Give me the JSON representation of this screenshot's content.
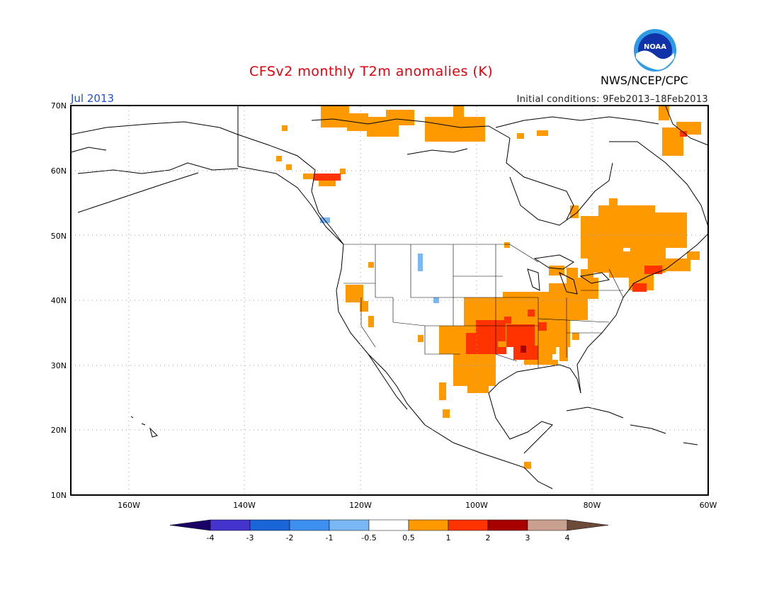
{
  "title": "CFSv2 monthly T2m anomalies (K)",
  "valid_month": "Jul 2013",
  "initial_conditions": "Initial conditions: 9Feb2013–18Feb2013",
  "organization": "NWS/NCEP/CPC",
  "logo": {
    "text": "NOAA",
    "icon": "noaa-logo"
  },
  "map": {
    "lat_ticks": [
      "70N",
      "60N",
      "50N",
      "40N",
      "30N",
      "20N",
      "10N"
    ],
    "lon_ticks": [
      "160W",
      "140W",
      "120W",
      "100W",
      "80W",
      "60W"
    ],
    "lat_range": [
      10,
      70
    ],
    "lon_range": [
      -170,
      -60
    ],
    "gridlines": true
  },
  "colorbar": {
    "labels": [
      "-4",
      "-3",
      "-2",
      "-1",
      "-0.5",
      "0.5",
      "1",
      "2",
      "3",
      "4"
    ],
    "colors": [
      "#1a0066",
      "#4433cc",
      "#1a66d9",
      "#3d8ff0",
      "#7ab8f5",
      "#ffffff",
      "#ff9900",
      "#ff3300",
      "#a80000",
      "#c9a090",
      "#6b4a3a"
    ]
  },
  "colors": {
    "plus_0_5_to_1": "#ff9900",
    "plus_1_to_2": "#ff3300",
    "plus_2_to_3": "#a80000",
    "minus_1_to_0_5": "#7ab8f5"
  }
}
